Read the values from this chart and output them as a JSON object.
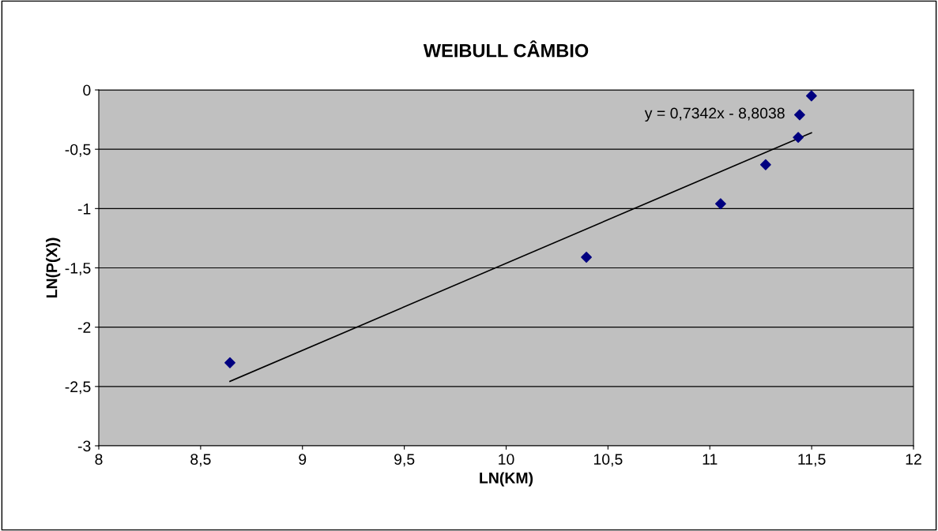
{
  "chart_data": {
    "type": "scatter",
    "title": "WEIBULL CÂMBIO",
    "xlabel": "LN(KM)",
    "ylabel": "LN(P(X))",
    "x": [
      8.644,
      10.394,
      11.053,
      11.274,
      11.434,
      11.441,
      11.499
    ],
    "series": [
      {
        "color": "#000080",
        "marker": "diamond",
        "values": [
          -2.3,
          -1.41,
          -0.96,
          -0.63,
          -0.4,
          -0.21,
          -0.05
        ]
      },
      {
        "type": "line",
        "color": "#000000",
        "marker": "none",
        "line_style": "solid",
        "x": [
          8.644,
          11.499
        ],
        "values": [
          -2.457,
          -0.361
        ]
      }
    ],
    "annotations": [
      "y = 0,7342x - 8,8038"
    ],
    "xlim": [
      8,
      12
    ],
    "xticks": [
      8,
      {
        "value": 8.5,
        "label": "8,5"
      },
      9,
      {
        "value": 9.5,
        "label": "9,5"
      },
      10,
      {
        "value": 10.5,
        "label": "10,5"
      },
      11,
      {
        "value": 11.5,
        "label": "11,5"
      },
      12
    ],
    "ylim": [
      -3,
      0
    ],
    "yticks": [
      -3,
      {
        "value": -2.5,
        "label": "-2,5"
      },
      -2,
      {
        "value": -1.5,
        "label": "-1,5"
      },
      -1,
      {
        "value": -0.5,
        "label": "-0,5"
      },
      0
    ],
    "grid": "y",
    "legend": false
  }
}
